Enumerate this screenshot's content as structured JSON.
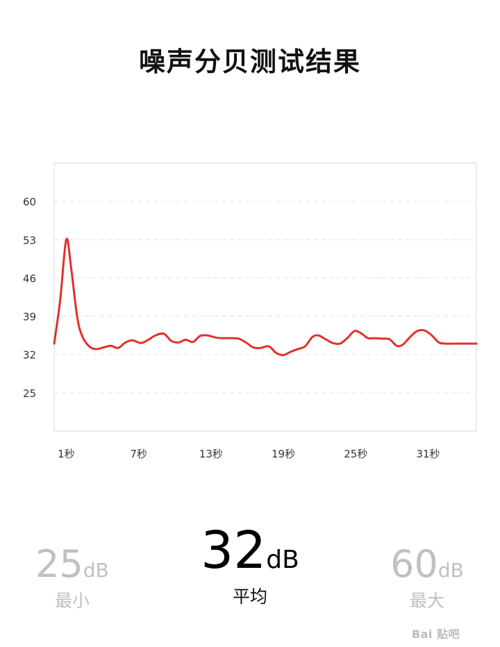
{
  "page": {
    "title": "噪声分贝测试结果"
  },
  "chart_data": {
    "type": "line",
    "title": "",
    "xlabel": "",
    "ylabel": "",
    "x_tick_labels": [
      "1秒",
      "7秒",
      "13秒",
      "19秒",
      "25秒",
      "31秒"
    ],
    "x_ticks_seconds": [
      1,
      7,
      13,
      19,
      25,
      31
    ],
    "y_tick_labels": [
      "25",
      "32",
      "39",
      "46",
      "53",
      "60"
    ],
    "y_ticks": [
      25,
      32,
      39,
      46,
      53,
      60
    ],
    "ylim": [
      18,
      67
    ],
    "xlim": [
      0,
      35
    ],
    "grid": true,
    "line_color": "#e0302c",
    "series": [
      {
        "x": [
          0,
          0.5,
          1,
          1.4,
          1.9,
          2.3,
          2.9,
          3.5,
          4.1,
          4.7,
          5.3,
          5.9,
          6.5,
          7.2,
          7.8,
          8.4,
          9.1,
          9.7,
          10.3,
          10.9,
          11.5,
          12.1,
          12.7,
          13.4,
          14,
          14.6,
          15.3,
          15.9,
          16.5,
          17.1,
          17.8,
          18.4,
          19,
          19.6,
          20.2,
          20.8,
          21.4,
          21.9,
          22.5,
          23.1,
          23.7,
          24.3,
          24.9,
          25.5,
          26,
          26.6,
          27.2,
          27.8,
          28.4,
          28.9,
          29.5,
          30.1,
          30.7,
          31.3,
          31.9,
          32.5,
          33.1,
          33.7,
          34.3,
          34.9,
          35
        ],
        "y": [
          34,
          42,
          53,
          48,
          39,
          35.5,
          33.5,
          33,
          33.3,
          33.6,
          33.2,
          34.2,
          34.6,
          34.1,
          34.7,
          35.5,
          35.8,
          34.5,
          34.2,
          34.7,
          34.3,
          35.4,
          35.5,
          35.1,
          35,
          35,
          34.9,
          34.2,
          33.3,
          33.2,
          33.5,
          32.3,
          31.9,
          32.5,
          33,
          33.5,
          35.2,
          35.5,
          34.8,
          34.1,
          34,
          35,
          36.3,
          35.8,
          35,
          35,
          34.9,
          34.8,
          33.6,
          33.8,
          35.2,
          36.3,
          36.4,
          35.5,
          34.2,
          34,
          34,
          34,
          34,
          34,
          34
        ]
      }
    ]
  },
  "stats": {
    "min": {
      "value": "25",
      "unit": "dB",
      "label": "最小"
    },
    "avg": {
      "value": "32",
      "unit": "dB",
      "label": "平均"
    },
    "max": {
      "value": "60",
      "unit": "dB",
      "label": "最大"
    }
  },
  "watermark": {
    "text": "Bai 贴吧"
  }
}
